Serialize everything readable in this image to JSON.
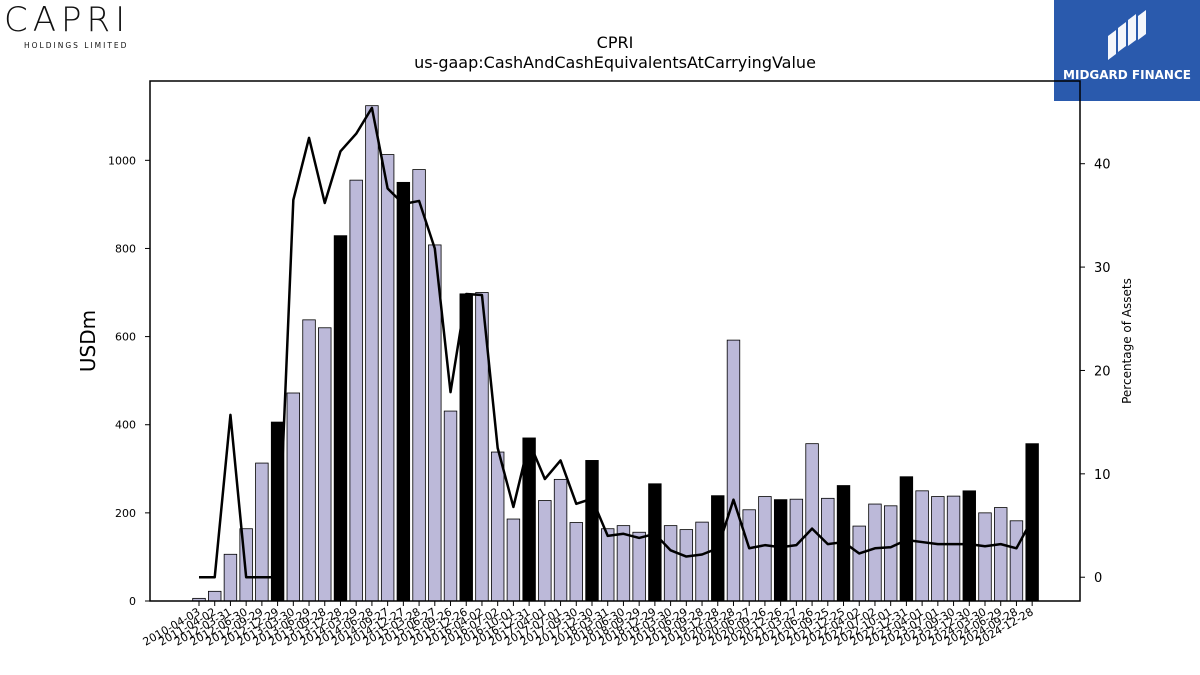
{
  "logos": {
    "left_word": "CAPRI",
    "left_sub": "HOLDINGS LIMITED",
    "right_text": "MIDGARD FINANCE"
  },
  "chart_data": {
    "type": "bar",
    "title": "CPRI",
    "subtitle": "us-gaap:CashAndCashEquivalentsAtCarryingValue",
    "ylabel": "USDm",
    "y2label": "Percentage of Assets",
    "ylim": [
      0,
      1180
    ],
    "yticks": [
      0,
      200,
      400,
      600,
      800,
      1000
    ],
    "y2lim": [
      -2.3,
      48
    ],
    "y2ticks": [
      0,
      10,
      20,
      30,
      40
    ],
    "categories": [
      "2010-04-03",
      "2011-04-02",
      "2012-03-31",
      "2012-06-30",
      "2012-09-29",
      "2012-12-29",
      "2013-03-30",
      "2013-06-29",
      "2013-09-28",
      "2013-12-28",
      "2014-03-29",
      "2014-06-28",
      "2014-09-27",
      "2014-12-27",
      "2015-03-28",
      "2015-06-27",
      "2015-09-26",
      "2015-12-26",
      "2016-04-02",
      "2016-07-02",
      "2016-10-01",
      "2016-12-31",
      "2017-04-01",
      "2017-07-01",
      "2017-09-30",
      "2017-12-30",
      "2018-03-31",
      "2018-06-30",
      "2018-09-29",
      "2018-12-29",
      "2019-03-30",
      "2019-06-29",
      "2019-09-28",
      "2019-12-28",
      "2020-03-28",
      "2020-06-27",
      "2020-09-26",
      "2020-12-26",
      "2021-03-27",
      "2021-06-26",
      "2021-09-25",
      "2021-12-25",
      "2022-04-02",
      "2022-07-02",
      "2022-10-01",
      "2022-12-31",
      "2023-04-01",
      "2023-07-01",
      "2023-09-30",
      "2023-12-30",
      "2024-03-30",
      "2024-06-29",
      "2024-09-28",
      "2024-12-28"
    ],
    "values": [
      6,
      22,
      106,
      164,
      313,
      406,
      472,
      638,
      620,
      829,
      955,
      1124,
      1013,
      950,
      979,
      808,
      431,
      697,
      700,
      338,
      186,
      370,
      228,
      276,
      178,
      319,
      164,
      171,
      156,
      266,
      171,
      162,
      179,
      239,
      592,
      207,
      237,
      230,
      231,
      357,
      233,
      262,
      170,
      220,
      216,
      282,
      250,
      237,
      238,
      250,
      200,
      212,
      182,
      357
    ],
    "highlight": [
      false,
      false,
      false,
      false,
      false,
      true,
      false,
      false,
      false,
      true,
      false,
      false,
      false,
      true,
      false,
      false,
      false,
      true,
      false,
      false,
      false,
      true,
      false,
      false,
      false,
      true,
      false,
      false,
      false,
      true,
      false,
      false,
      false,
      true,
      false,
      false,
      false,
      true,
      false,
      false,
      false,
      true,
      false,
      false,
      false,
      true,
      false,
      false,
      false,
      true,
      false,
      false,
      false,
      true
    ],
    "pct_assets": [
      0,
      0,
      15.7,
      0,
      0,
      0,
      36.5,
      42.5,
      36.2,
      41.2,
      42.9,
      45.4,
      37.6,
      36.1,
      36.4,
      31.8,
      17.9,
      27.4,
      27.3,
      12.5,
      6.8,
      13.1,
      9.5,
      11.3,
      7.1,
      7.6,
      4.0,
      4.2,
      3.8,
      4.2,
      2.6,
      2.0,
      2.2,
      2.8,
      7.5,
      2.8,
      3.1,
      2.9,
      3.1,
      4.7,
      3.2,
      3.4,
      2.3,
      2.8,
      2.9,
      3.6,
      3.4,
      3.2,
      3.2,
      3.2,
      3.0,
      3.2,
      2.8,
      5.6
    ],
    "colors": {
      "bar": "#bcb9d9",
      "bar_highlight": "#000000",
      "line": "#000000"
    },
    "grid": false,
    "legend": "none"
  }
}
